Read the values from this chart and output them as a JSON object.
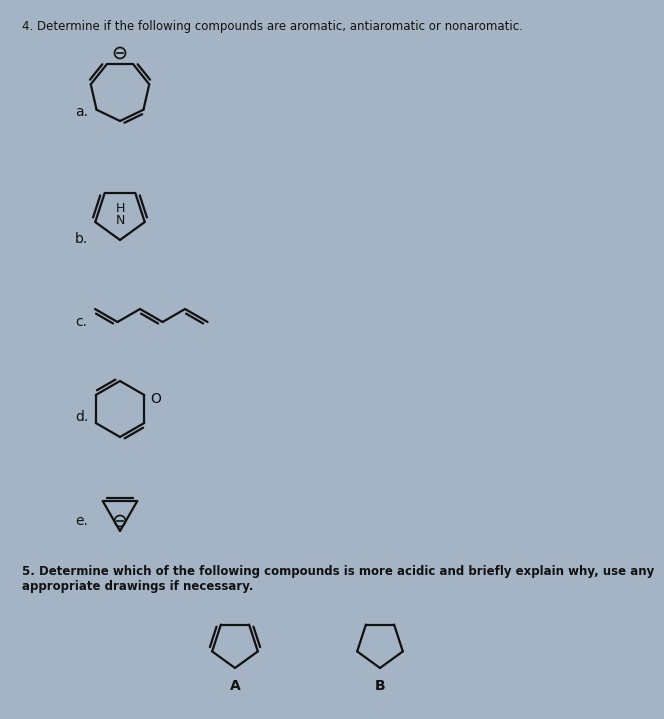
{
  "bg_color": "#a4b4c4",
  "title4": "4. Determine if the following compounds are aromatic, antiaromatic or nonaromatic.",
  "title5": "5. Determine which of the following compounds is more acidic and briefly explain why, use any\nappropriate drawings if necessary.",
  "label_a": "a.",
  "label_b": "b.",
  "label_c": "c.",
  "label_d": "d.",
  "label_e": "e.",
  "label_A": "A",
  "label_B": "B",
  "line_color": "#111111",
  "text_color": "#111111"
}
